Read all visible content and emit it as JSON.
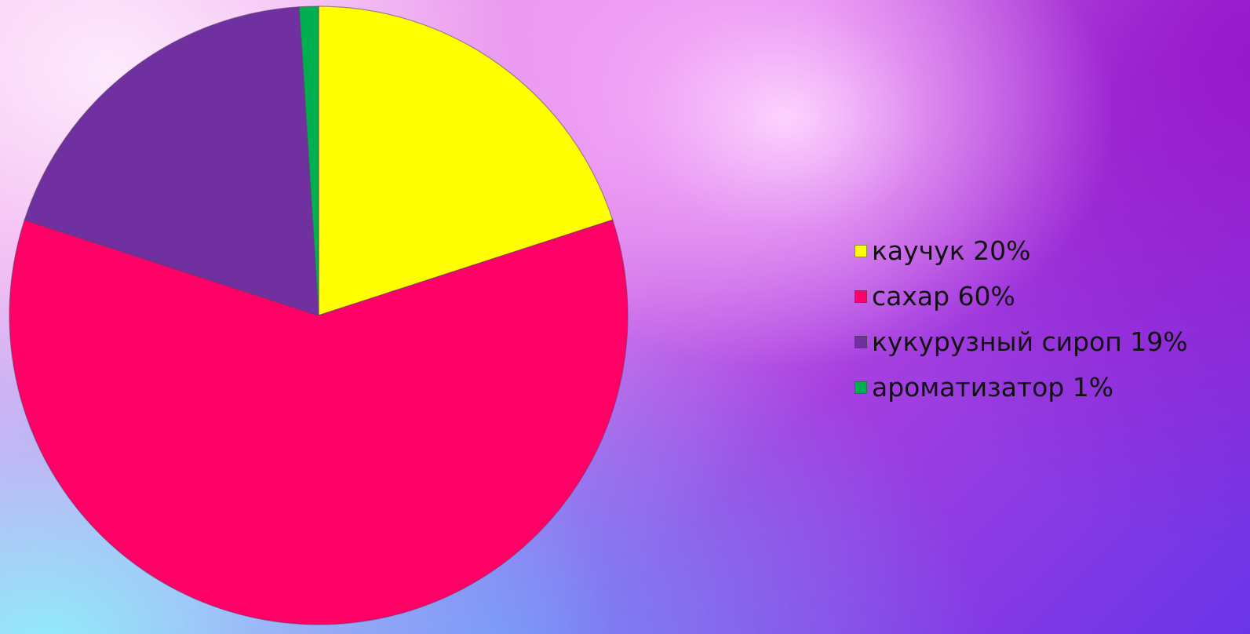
{
  "chart_data": {
    "type": "pie",
    "slices": [
      {
        "label": "каучук 20%",
        "value": 20,
        "color": "#ffff00"
      },
      {
        "label": "сахар 60%",
        "value": 60,
        "color": "#ff0066"
      },
      {
        "label": "кукурузный сироп 19%",
        "value": 19,
        "color": "#7030a0"
      },
      {
        "label": "ароматизатор 1%",
        "value": 1,
        "color": "#00b050"
      }
    ],
    "start": "12 o'clock",
    "direction": "clockwise",
    "legend": {
      "position": "right"
    }
  }
}
